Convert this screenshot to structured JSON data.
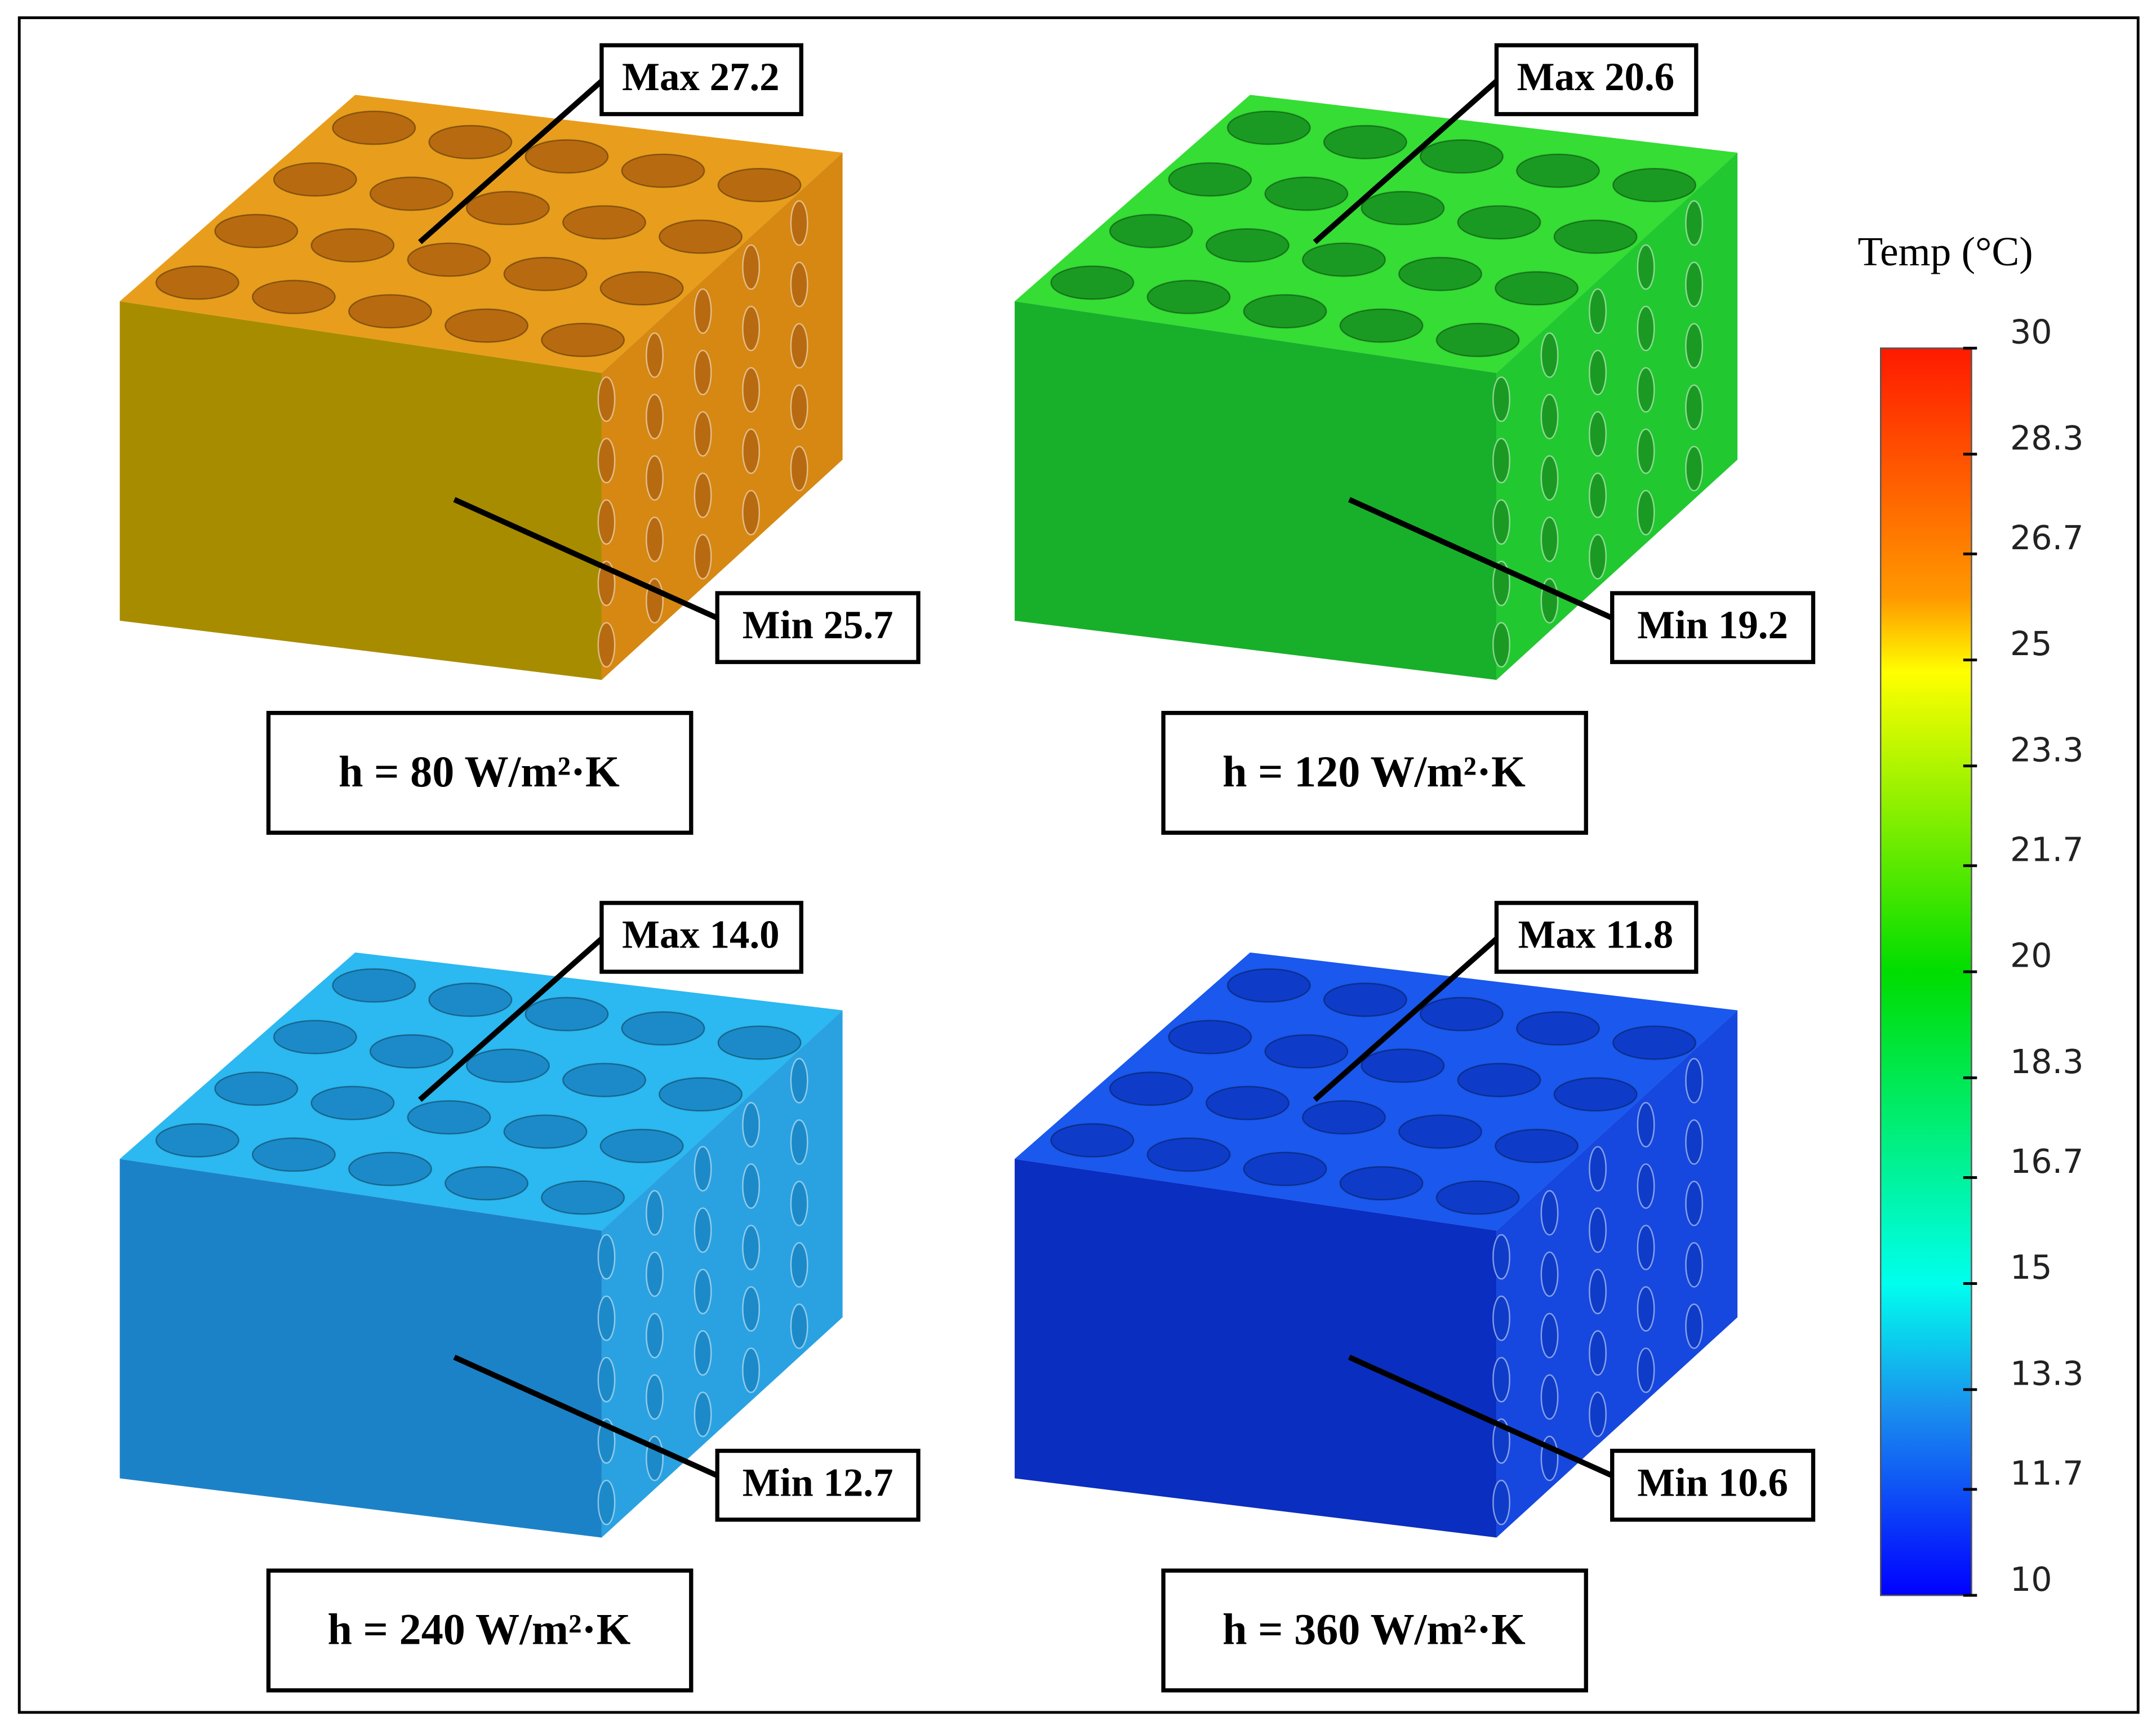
{
  "panels": [
    {
      "max": "Max 27.2",
      "min": "Min 25.7",
      "h": "h = 80 W/m²·K"
    },
    {
      "max": "Max 20.6",
      "min": "Min 19.2",
      "h": "h = 120 W/m²·K"
    },
    {
      "max": "Max 14.0",
      "min": "Min 12.7",
      "h": "h = 240 W/m²·K"
    },
    {
      "max": "Max 11.8",
      "min": "Min 10.6",
      "h": "h = 360 W/m²·K"
    }
  ],
  "colorbar": {
    "title": "Temp (°C)",
    "lim": [
      10,
      30
    ],
    "ticks": [
      30,
      28.3,
      26.7,
      25,
      23.3,
      21.7,
      20,
      18.3,
      16.7,
      15,
      13.3,
      11.7,
      10
    ]
  }
}
